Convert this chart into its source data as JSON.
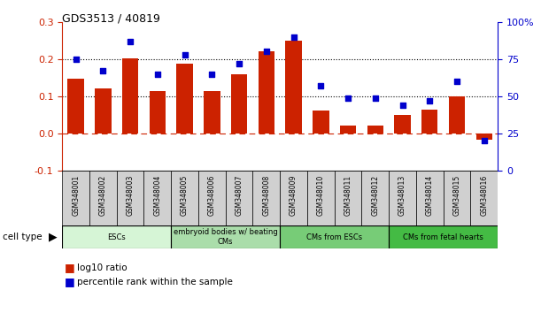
{
  "title": "GDS3513 / 40819",
  "samples": [
    "GSM348001",
    "GSM348002",
    "GSM348003",
    "GSM348004",
    "GSM348005",
    "GSM348006",
    "GSM348007",
    "GSM348008",
    "GSM348009",
    "GSM348010",
    "GSM348011",
    "GSM348012",
    "GSM348013",
    "GSM348014",
    "GSM348015",
    "GSM348016"
  ],
  "log10_ratio": [
    0.148,
    0.122,
    0.203,
    0.113,
    0.188,
    0.113,
    0.16,
    0.22,
    0.25,
    0.062,
    0.022,
    0.022,
    0.05,
    0.065,
    0.1,
    -0.018
  ],
  "percentile_rank": [
    75,
    67,
    87,
    65,
    78,
    65,
    72,
    80,
    90,
    57,
    49,
    49,
    44,
    47,
    60,
    20
  ],
  "cell_groups": [
    {
      "label": "ESCs",
      "start": 0,
      "end": 3,
      "color": "#d6f5d6"
    },
    {
      "label": "embryoid bodies w/ beating\nCMs",
      "start": 4,
      "end": 7,
      "color": "#aaddaa"
    },
    {
      "label": "CMs from ESCs",
      "start": 8,
      "end": 11,
      "color": "#77cc77"
    },
    {
      "label": "CMs from fetal hearts",
      "start": 12,
      "end": 15,
      "color": "#44bb44"
    }
  ],
  "ylim_left": [
    -0.1,
    0.3
  ],
  "ylim_right": [
    0,
    100
  ],
  "bar_color": "#cc2200",
  "dot_color": "#0000cc",
  "zero_line_color": "#cc2200",
  "bg_color": "#ffffff",
  "sample_box_color": "#d0d0d0",
  "figsize": [
    6.11,
    3.54
  ],
  "dpi": 100
}
